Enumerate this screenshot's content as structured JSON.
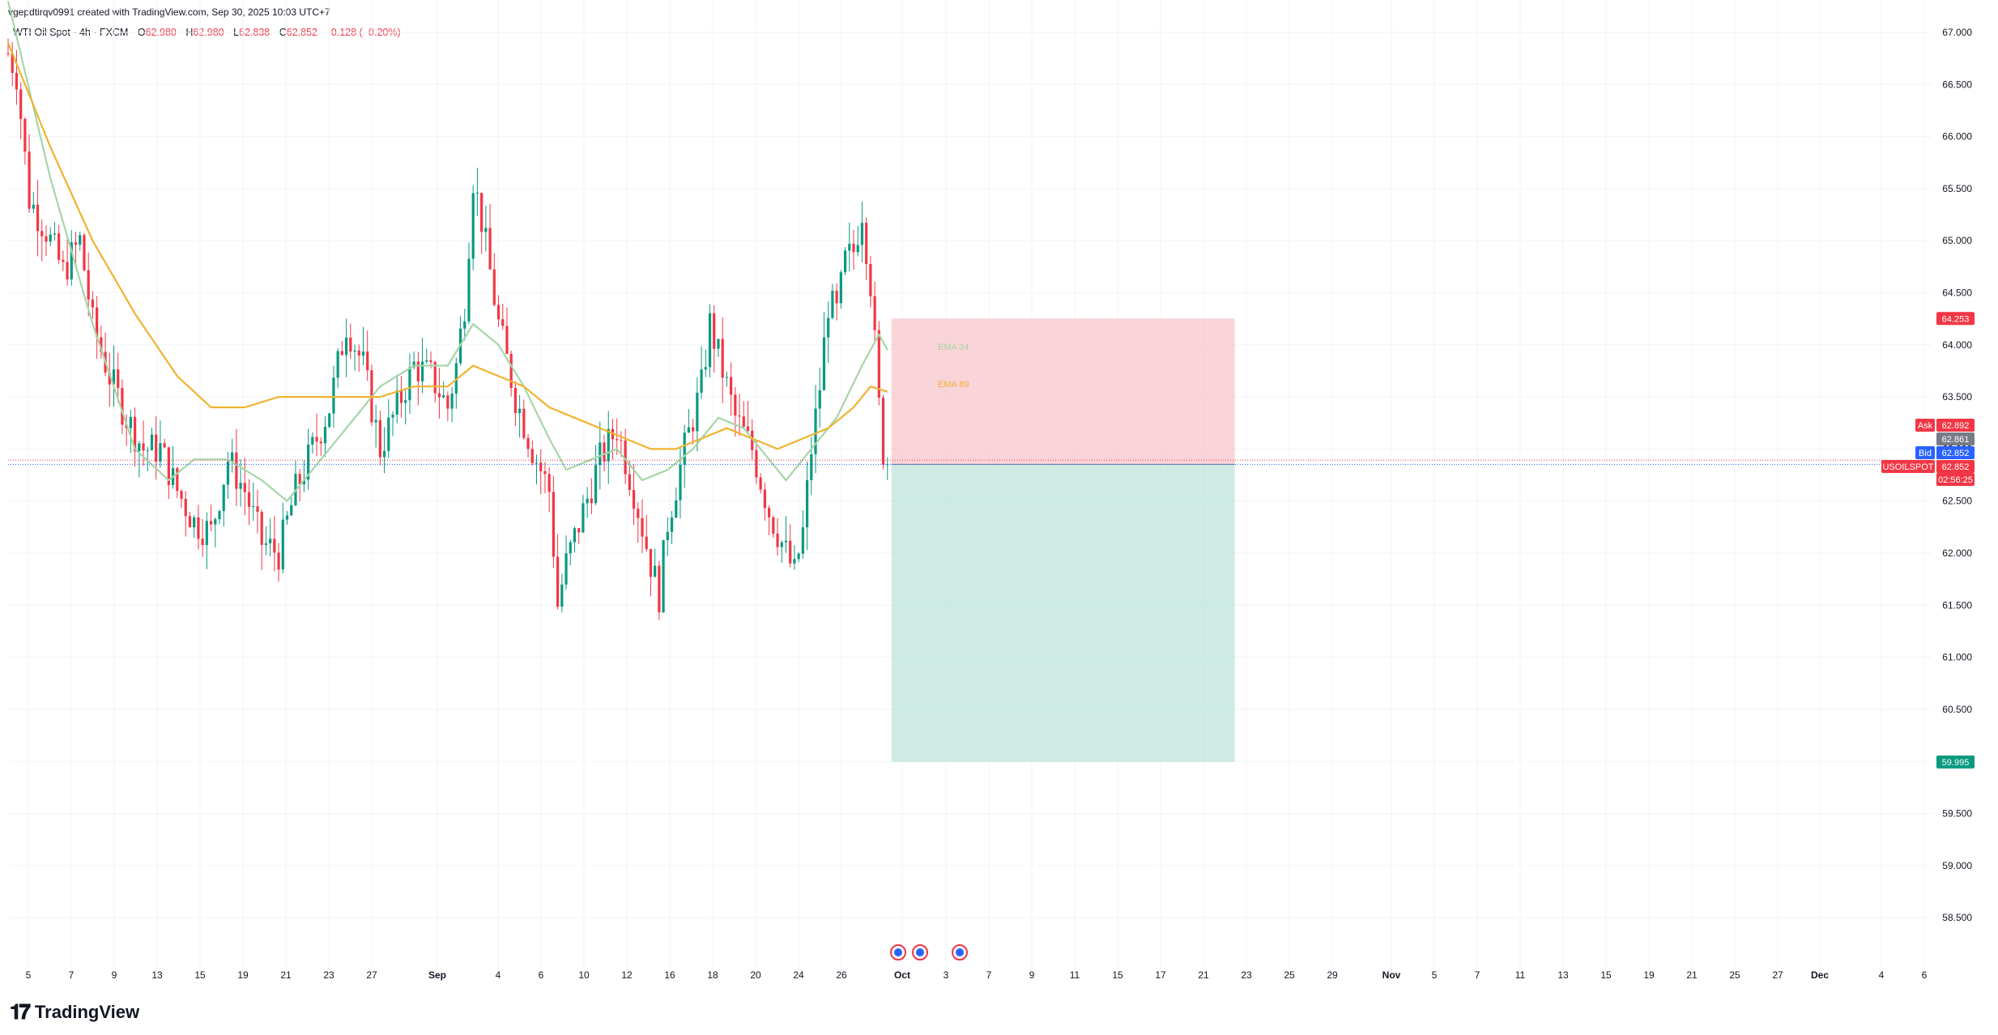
{
  "header": {
    "attribution": "vgepdtirqv0991 created with TradingView.com, Sep 30, 2025 10:03 UTC+7"
  },
  "legend": {
    "symbol": "WTI Oil Spot · 4h · FXCM",
    "open_label": "O",
    "open": "62.980",
    "high_label": "H",
    "high": "62.980",
    "low_label": "L",
    "low": "62.838",
    "close_label": "C",
    "close": "62.852",
    "change": "−0.128 (−0.20%)"
  },
  "brand": {
    "name": "TradingView"
  },
  "colors": {
    "up": "#089981",
    "down": "#f23645",
    "ema34": "#a5d6a7",
    "ema89": "#f0b330",
    "stop_zone": "#f7c5cb",
    "target_zone": "#b3e0d5",
    "ask": "#f23645",
    "bid": "#2962ff",
    "grid": "#f0f3fa"
  },
  "chart_data": {
    "type": "candlestick",
    "title": "WTI Oil Spot · 4h · FXCM",
    "ylim": [
      58.2,
      67.1
    ],
    "y_ticks": [
      "67.000",
      "66.500",
      "66.000",
      "65.500",
      "65.000",
      "64.500",
      "64.000",
      "63.500",
      "63.000",
      "62.500",
      "62.000",
      "61.500",
      "61.000",
      "60.500",
      "60.000",
      "59.500",
      "59.000",
      "58.500"
    ],
    "x_ticks": [
      "5",
      "7",
      "9",
      "13",
      "15",
      "19",
      "21",
      "23",
      "27",
      "Sep",
      "4",
      "6",
      "10",
      "12",
      "16",
      "18",
      "20",
      "24",
      "26",
      "Oct",
      "3",
      "7",
      "9",
      "11",
      "15",
      "17",
      "21",
      "23",
      "25",
      "29",
      "Nov",
      "5",
      "7",
      "11",
      "13",
      "15",
      "19",
      "21",
      "25",
      "27",
      "Dec",
      "4",
      "6"
    ],
    "price_path": [
      [
        0,
        66.8
      ],
      [
        2,
        66.6
      ],
      [
        5,
        65.4
      ],
      [
        9,
        65.1
      ],
      [
        13,
        64.7
      ],
      [
        17,
        65.0
      ],
      [
        20,
        64.2
      ],
      [
        24,
        63.7
      ],
      [
        28,
        63.3
      ],
      [
        32,
        63.0
      ],
      [
        36,
        63.0
      ],
      [
        40,
        62.6
      ],
      [
        44,
        62.3
      ],
      [
        48,
        62.2
      ],
      [
        52,
        62.9
      ],
      [
        56,
        62.6
      ],
      [
        60,
        62.1
      ],
      [
        64,
        62.0
      ],
      [
        68,
        62.6
      ],
      [
        72,
        63.0
      ],
      [
        76,
        63.4
      ],
      [
        80,
        64.2
      ],
      [
        84,
        63.8
      ],
      [
        88,
        63.0
      ],
      [
        92,
        63.4
      ],
      [
        96,
        63.8
      ],
      [
        100,
        63.7
      ],
      [
        104,
        63.4
      ],
      [
        106,
        63.8
      ],
      [
        108,
        64.4
      ],
      [
        110,
        65.6
      ],
      [
        112,
        65.2
      ],
      [
        116,
        64.2
      ],
      [
        120,
        63.5
      ],
      [
        124,
        63.0
      ],
      [
        128,
        62.6
      ],
      [
        130,
        61.5
      ],
      [
        132,
        61.9
      ],
      [
        136,
        62.4
      ],
      [
        140,
        62.9
      ],
      [
        144,
        63.2
      ],
      [
        148,
        62.6
      ],
      [
        152,
        61.9
      ],
      [
        154,
        61.6
      ],
      [
        156,
        62.3
      ],
      [
        160,
        63.0
      ],
      [
        164,
        63.6
      ],
      [
        166,
        64.2
      ],
      [
        168,
        63.9
      ],
      [
        172,
        63.3
      ],
      [
        176,
        63.0
      ],
      [
        180,
        62.4
      ],
      [
        184,
        62.0
      ],
      [
        186,
        61.8
      ],
      [
        188,
        62.2
      ],
      [
        190,
        63.0
      ],
      [
        192,
        63.6
      ],
      [
        194,
        64.4
      ],
      [
        196,
        64.3
      ],
      [
        198,
        64.8
      ],
      [
        200,
        64.9
      ],
      [
        202,
        65.3
      ],
      [
        204,
        64.6
      ],
      [
        206,
        63.4
      ],
      [
        207,
        62.98
      ],
      [
        208,
        62.852
      ]
    ],
    "ema_34_label": "EMA 34",
    "ema_89_label": "EMA 89",
    "ema_34": [
      [
        0,
        67.3
      ],
      [
        10,
        65.6
      ],
      [
        20,
        64.2
      ],
      [
        30,
        63.0
      ],
      [
        38,
        62.7
      ],
      [
        44,
        62.9
      ],
      [
        52,
        62.9
      ],
      [
        60,
        62.7
      ],
      [
        66,
        62.5
      ],
      [
        72,
        62.8
      ],
      [
        80,
        63.2
      ],
      [
        88,
        63.6
      ],
      [
        96,
        63.8
      ],
      [
        104,
        63.8
      ],
      [
        110,
        64.2
      ],
      [
        116,
        64.0
      ],
      [
        122,
        63.6
      ],
      [
        128,
        63.1
      ],
      [
        132,
        62.8
      ],
      [
        138,
        62.9
      ],
      [
        144,
        63.0
      ],
      [
        150,
        62.7
      ],
      [
        156,
        62.8
      ],
      [
        162,
        63.0
      ],
      [
        168,
        63.3
      ],
      [
        174,
        63.2
      ],
      [
        180,
        62.9
      ],
      [
        184,
        62.7
      ],
      [
        190,
        63.0
      ],
      [
        196,
        63.3
      ],
      [
        202,
        63.8
      ],
      [
        206,
        64.1
      ],
      [
        208,
        63.95
      ]
    ],
    "ema_89": [
      [
        0,
        66.9
      ],
      [
        10,
        65.9
      ],
      [
        20,
        65.0
      ],
      [
        30,
        64.3
      ],
      [
        40,
        63.7
      ],
      [
        48,
        63.4
      ],
      [
        56,
        63.4
      ],
      [
        64,
        63.5
      ],
      [
        72,
        63.5
      ],
      [
        80,
        63.5
      ],
      [
        88,
        63.5
      ],
      [
        96,
        63.6
      ],
      [
        104,
        63.6
      ],
      [
        110,
        63.8
      ],
      [
        116,
        63.7
      ],
      [
        122,
        63.6
      ],
      [
        128,
        63.4
      ],
      [
        134,
        63.3
      ],
      [
        140,
        63.2
      ],
      [
        146,
        63.1
      ],
      [
        152,
        63.0
      ],
      [
        158,
        63.0
      ],
      [
        164,
        63.1
      ],
      [
        170,
        63.2
      ],
      [
        176,
        63.1
      ],
      [
        182,
        63.0
      ],
      [
        188,
        63.1
      ],
      [
        194,
        63.2
      ],
      [
        200,
        63.4
      ],
      [
        204,
        63.6
      ],
      [
        208,
        63.55
      ]
    ],
    "position": {
      "entry": 62.852,
      "stop": 64.253,
      "stop_label": "64.253",
      "target": 59.995,
      "target_label": "59.995",
      "x_start": 208,
      "x_end": 289
    },
    "price_labels": {
      "ask_label": "Ask",
      "ask": "62.892",
      "mid": "62.861",
      "bid_label": "Bid",
      "bid": "62.852",
      "symbol_tag": "USOILSPOT",
      "last": "62.852",
      "countdown": "02:56:25"
    },
    "grid": true
  }
}
